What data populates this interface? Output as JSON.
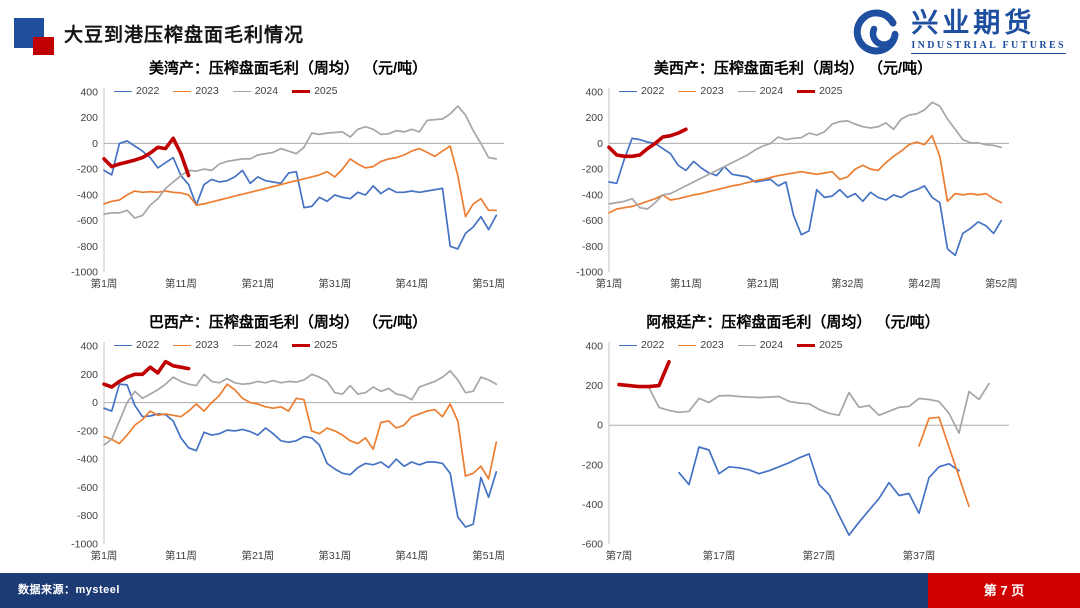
{
  "header": {
    "title": "大豆到港压榨盘面毛利情况",
    "logo": {
      "name": "兴业期货",
      "subtitle": "INDUSTRIAL FUTURES",
      "brand_color": "#1E4FA0"
    }
  },
  "footer": {
    "source": "数据来源：mysteel",
    "page": "第 7 页",
    "bar_color": "#1C3A74",
    "page_block_color": "#CE0000"
  },
  "chart_data": [
    {
      "type": "line",
      "title": "美湾产：压榨盘面毛利（周均） （元/吨）",
      "ylabel": "元/吨",
      "ylim": [
        -1000,
        400
      ],
      "yticks": [
        400,
        200,
        0,
        -200,
        -400,
        -600,
        -800,
        -1000
      ],
      "x_domain": [
        1,
        53
      ],
      "xticks": [
        {
          "week": 1,
          "label": "第1周"
        },
        {
          "week": 11,
          "label": "第11周"
        },
        {
          "week": 21,
          "label": "第21周"
        },
        {
          "week": 31,
          "label": "第31周"
        },
        {
          "week": 41,
          "label": "第41周"
        },
        {
          "week": 51,
          "label": "第51周"
        }
      ],
      "series": [
        {
          "name": "2022",
          "color": "#4472C4",
          "width": 1.7,
          "start_week": 1,
          "values": [
            -210,
            -245,
            0,
            20,
            -20,
            -60,
            -110,
            -190,
            -150,
            -110,
            -250,
            -320,
            -480,
            -320,
            -280,
            -300,
            -290,
            -260,
            -210,
            -310,
            -260,
            -290,
            -300,
            -310,
            -230,
            -220,
            -500,
            -490,
            -420,
            -450,
            -400,
            -420,
            -430,
            -380,
            -400,
            -330,
            -390,
            -350,
            -380,
            -380,
            -370,
            -380,
            -370,
            -360,
            -350,
            -800,
            -820,
            -700,
            -650,
            -570,
            -670,
            -560
          ]
        },
        {
          "name": "2023",
          "color": "#ED7D31",
          "width": 1.7,
          "start_week": 1,
          "values": [
            -470,
            -450,
            -440,
            -400,
            -370,
            -380,
            -375,
            -380,
            -370,
            -380,
            -385,
            -400,
            -480,
            -470,
            -455,
            -440,
            -425,
            -410,
            -395,
            -380,
            -365,
            -350,
            -335,
            -320,
            -305,
            -290,
            -275,
            -260,
            -245,
            -220,
            -260,
            -200,
            -120,
            -160,
            -190,
            -180,
            -140,
            -120,
            -110,
            -90,
            -60,
            -40,
            -70,
            -100,
            -60,
            -20,
            -250,
            -570,
            -470,
            -430,
            -520,
            -520
          ]
        },
        {
          "name": "2024",
          "color": "#A6A6A6",
          "width": 1.7,
          "start_week": 1,
          "values": [
            -550,
            -540,
            -540,
            -520,
            -580,
            -560,
            -480,
            -430,
            -350,
            -300,
            -250,
            -210,
            -215,
            -200,
            -210,
            -160,
            -140,
            -130,
            -120,
            -120,
            -90,
            -80,
            -70,
            -40,
            -60,
            -80,
            -30,
            80,
            70,
            80,
            85,
            90,
            50,
            110,
            130,
            110,
            70,
            75,
            100,
            90,
            110,
            90,
            180,
            185,
            190,
            230,
            290,
            220,
            100,
            0,
            -110,
            -120
          ]
        },
        {
          "name": "2025",
          "color": "#C00000",
          "width": 3.6,
          "start_week": 1,
          "values": [
            -120,
            -180,
            -160,
            -145,
            -130,
            -110,
            -75,
            -30,
            -40,
            40,
            -80,
            -250
          ]
        }
      ]
    },
    {
      "type": "line",
      "title": "美西产：压榨盘面毛利（周均） （元/吨）",
      "ylabel": "元/吨",
      "ylim": [
        -1000,
        400
      ],
      "yticks": [
        400,
        200,
        0,
        -200,
        -400,
        -600,
        -800,
        -1000
      ],
      "x_domain": [
        1,
        53
      ],
      "xticks": [
        {
          "week": 1,
          "label": "第1周"
        },
        {
          "week": 11,
          "label": "第11周"
        },
        {
          "week": 21,
          "label": "第21周"
        },
        {
          "week": 32,
          "label": "第32周"
        },
        {
          "week": 42,
          "label": "第42周"
        },
        {
          "week": 52,
          "label": "第52周"
        }
      ],
      "series": [
        {
          "name": "2022",
          "color": "#4472C4",
          "width": 1.7,
          "start_week": 1,
          "values": [
            -300,
            -310,
            -120,
            40,
            30,
            10,
            0,
            -40,
            -80,
            -170,
            -210,
            -140,
            -190,
            -230,
            -250,
            -180,
            -240,
            -250,
            -260,
            -300,
            -290,
            -280,
            -330,
            -300,
            -560,
            -710,
            -680,
            -360,
            -420,
            -410,
            -360,
            -420,
            -390,
            -450,
            -380,
            -420,
            -440,
            -400,
            -420,
            -380,
            -360,
            -330,
            -420,
            -460,
            -820,
            -870,
            -700,
            -660,
            -610,
            -640,
            -700,
            -600
          ]
        },
        {
          "name": "2023",
          "color": "#ED7D31",
          "width": 1.7,
          "start_week": 1,
          "values": [
            -540,
            -510,
            -500,
            -490,
            -470,
            -450,
            -430,
            -400,
            -440,
            -430,
            -415,
            -400,
            -390,
            -375,
            -360,
            -345,
            -330,
            -320,
            -305,
            -290,
            -280,
            -265,
            -250,
            -240,
            -230,
            -220,
            -230,
            -240,
            -230,
            -220,
            -280,
            -260,
            -200,
            -170,
            -200,
            -210,
            -150,
            -100,
            -60,
            -10,
            10,
            -10,
            60,
            -100,
            -450,
            -390,
            -400,
            -390,
            -400,
            -390,
            -430,
            -460
          ]
        },
        {
          "name": "2024",
          "color": "#A6A6A6",
          "width": 1.7,
          "start_week": 1,
          "values": [
            -470,
            -460,
            -450,
            -430,
            -500,
            -510,
            -460,
            -400,
            -390,
            -360,
            -330,
            -300,
            -270,
            -240,
            -210,
            -180,
            -150,
            -120,
            -90,
            -50,
            -20,
            0,
            50,
            30,
            40,
            45,
            80,
            65,
            90,
            150,
            170,
            175,
            150,
            130,
            120,
            130,
            160,
            110,
            190,
            220,
            230,
            260,
            320,
            290,
            190,
            110,
            30,
            5,
            5,
            -10,
            -15,
            -30
          ]
        },
        {
          "name": "2025",
          "color": "#C00000",
          "width": 3.6,
          "start_week": 1,
          "values": [
            -30,
            -90,
            -100,
            -100,
            -90,
            -40,
            0,
            50,
            60,
            80,
            110
          ]
        }
      ]
    },
    {
      "type": "line",
      "title": "巴西产：压榨盘面毛利（周均） （元/吨）",
      "ylabel": "元/吨",
      "ylim": [
        -1000,
        400
      ],
      "yticks": [
        400,
        200,
        0,
        -200,
        -400,
        -600,
        -800,
        -1000
      ],
      "x_domain": [
        1,
        53
      ],
      "xticks": [
        {
          "week": 1,
          "label": "第1周"
        },
        {
          "week": 11,
          "label": "第11周"
        },
        {
          "week": 21,
          "label": "第21周"
        },
        {
          "week": 31,
          "label": "第31周"
        },
        {
          "week": 41,
          "label": "第41周"
        },
        {
          "week": 51,
          "label": "第51周"
        }
      ],
      "series": [
        {
          "name": "2022",
          "color": "#4472C4",
          "width": 1.7,
          "start_week": 1,
          "values": [
            -40,
            -60,
            130,
            125,
            -20,
            -100,
            -95,
            -80,
            -85,
            -130,
            -250,
            -320,
            -340,
            -210,
            -230,
            -220,
            -195,
            -200,
            -190,
            -205,
            -230,
            -180,
            -220,
            -270,
            -280,
            -270,
            -240,
            -250,
            -300,
            -430,
            -470,
            -500,
            -510,
            -460,
            -430,
            -440,
            -420,
            -460,
            -400,
            -450,
            -420,
            -440,
            -420,
            -420,
            -430,
            -500,
            -810,
            -880,
            -860,
            -530,
            -670,
            -490
          ]
        },
        {
          "name": "2023",
          "color": "#ED7D31",
          "width": 1.7,
          "start_week": 1,
          "values": [
            -240,
            -260,
            -290,
            -230,
            -160,
            -120,
            -60,
            -90,
            -80,
            -90,
            -100,
            -60,
            -10,
            -60,
            0,
            50,
            130,
            90,
            30,
            0,
            -10,
            -30,
            -40,
            -30,
            -60,
            30,
            20,
            -200,
            -220,
            -180,
            -200,
            -230,
            -270,
            -290,
            -250,
            -330,
            -140,
            -130,
            -180,
            -160,
            -100,
            -80,
            -60,
            -50,
            -100,
            -10,
            -130,
            -520,
            -500,
            -450,
            -540,
            -280
          ]
        },
        {
          "name": "2024",
          "color": "#A6A6A6",
          "width": 1.7,
          "start_week": 1,
          "values": [
            -300,
            -260,
            -130,
            0,
            80,
            30,
            60,
            90,
            130,
            180,
            150,
            130,
            120,
            200,
            150,
            140,
            170,
            140,
            130,
            135,
            150,
            140,
            155,
            140,
            150,
            145,
            160,
            200,
            180,
            150,
            70,
            60,
            120,
            60,
            70,
            110,
            80,
            100,
            60,
            50,
            20,
            110,
            130,
            150,
            180,
            225,
            160,
            70,
            80,
            180,
            160,
            130
          ]
        },
        {
          "name": "2025",
          "color": "#C00000",
          "width": 3.6,
          "start_week": 1,
          "values": [
            130,
            110,
            150,
            180,
            200,
            200,
            250,
            210,
            290,
            260,
            250,
            240
          ]
        }
      ]
    },
    {
      "type": "line",
      "title": "阿根廷产：压榨盘面毛利（周均） （元/吨）",
      "ylabel": "元/吨",
      "ylim": [
        -600,
        400
      ],
      "yticks": [
        400,
        200,
        0,
        -200,
        -400,
        -600
      ],
      "x_domain": [
        6,
        46
      ],
      "xticks": [
        {
          "week": 7,
          "label": "第7周"
        },
        {
          "week": 17,
          "label": "第17周"
        },
        {
          "week": 27,
          "label": "第27周"
        },
        {
          "week": 37,
          "label": "第37周"
        }
      ],
      "series": [
        {
          "name": "2022",
          "color": "#4472C4",
          "width": 1.7,
          "start_week": 13,
          "values": [
            -240,
            -300,
            -110,
            -125,
            -245,
            -210,
            -215,
            -225,
            -245,
            -230,
            -210,
            -190,
            -165,
            -145,
            -300,
            -350,
            -455,
            -555,
            -490,
            -430,
            -370,
            -290,
            -355,
            -345,
            -445,
            -265,
            -210,
            -195,
            -230
          ]
        },
        {
          "name": "2023",
          "color": "#ED7D31",
          "width": 1.7,
          "start_week": 37,
          "values": [
            -105,
            35,
            40,
            -110,
            -260,
            -410
          ]
        },
        {
          "name": "2024",
          "color": "#A6A6A6",
          "width": 1.7,
          "start_week": 10,
          "values": [
            190,
            90,
            75,
            65,
            70,
            135,
            115,
            148,
            150,
            145,
            142,
            140,
            142,
            145,
            120,
            112,
            108,
            80,
            60,
            50,
            165,
            90,
            100,
            50,
            70,
            90,
            95,
            135,
            130,
            120,
            60,
            -40,
            170,
            130,
            210
          ]
        },
        {
          "name": "2025",
          "color": "#C00000",
          "width": 3.6,
          "start_week": 7,
          "values": [
            205,
            200,
            195,
            195,
            200,
            320
          ]
        }
      ]
    }
  ]
}
